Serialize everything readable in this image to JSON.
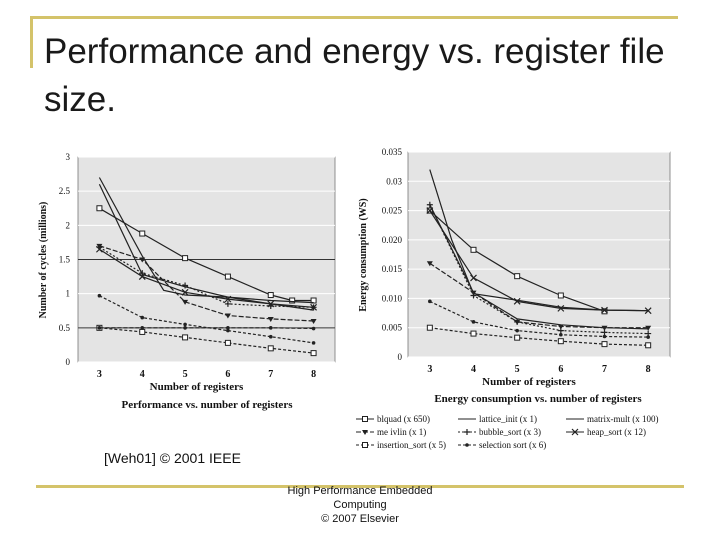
{
  "slide": {
    "title": "Performance and energy vs. register file size.",
    "citation": "[Weh01] © 2001 IEEE",
    "footer": [
      "High Performance Embedded",
      "Computing",
      "© 2007 Elsevier"
    ]
  },
  "chart_data": [
    {
      "type": "line",
      "title": "Performance vs. number of registers",
      "xlabel": "Number of registers",
      "ylabel": "Number of cycles (millions)",
      "x": [
        3,
        4,
        5,
        6,
        7,
        8
      ],
      "xlim": [
        2.5,
        8.5
      ],
      "ylim": [
        0,
        3
      ],
      "yticks": [
        "0",
        "0.5",
        "1",
        "1.5",
        "2",
        "2.5",
        "3"
      ],
      "grid": true,
      "series": [
        {
          "name": "blquad (x 650)",
          "marker": "square",
          "dash": "",
          "x": [
            3,
            4,
            5,
            6,
            7,
            7.5,
            8
          ],
          "values": [
            2.25,
            1.88,
            1.52,
            1.25,
            0.98,
            0.9,
            0.9
          ]
        },
        {
          "name": "lattice_init (x 1)",
          "marker": "none",
          "dash": "",
          "x": [
            3,
            4,
            4.5,
            5,
            6,
            7,
            8
          ],
          "values": [
            2.7,
            1.55,
            1.05,
            0.98,
            0.95,
            0.9,
            0.87
          ]
        },
        {
          "name": "matrix-mult (x 100)",
          "marker": "none",
          "dash": "",
          "x": [
            3,
            4,
            5,
            6,
            7,
            8
          ],
          "values": [
            2.6,
            1.28,
            1.1,
            0.95,
            0.85,
            0.76
          ]
        },
        {
          "name": "me ivlin (x 1)",
          "marker": "triangle",
          "dash": "5,2",
          "x": [
            3,
            4,
            5,
            6,
            7,
            8
          ],
          "values": [
            1.7,
            1.5,
            0.88,
            0.68,
            0.63,
            0.6
          ]
        },
        {
          "name": "bubble_sort (x 3)",
          "marker": "plus",
          "dash": "2,2",
          "x": [
            3,
            4,
            5,
            6,
            7,
            8
          ],
          "values": [
            1.68,
            1.3,
            1.12,
            0.85,
            0.82,
            0.8
          ]
        },
        {
          "name": "heap_sort (x 12)",
          "marker": "x",
          "dash": "",
          "x": [
            3,
            4,
            5,
            6,
            7,
            8
          ],
          "values": [
            1.65,
            1.25,
            1.02,
            0.92,
            0.85,
            0.8
          ]
        },
        {
          "name": "insertion_sort (x 5)",
          "marker": "square",
          "dash": "3,2",
          "x": [
            3,
            4,
            5,
            6,
            7,
            8
          ],
          "values": [
            0.5,
            0.44,
            0.36,
            0.28,
            0.2,
            0.13
          ]
        },
        {
          "name": "selection sort (x 6)",
          "marker": "dot",
          "dash": "3,2",
          "x": [
            3,
            4,
            5,
            6,
            7,
            8
          ],
          "values": [
            0.97,
            0.65,
            0.55,
            0.46,
            0.37,
            0.28
          ]
        },
        {
          "name": "",
          "marker": "dot",
          "dash": "4,2",
          "x": [
            3,
            4,
            5,
            6,
            7,
            8
          ],
          "values": [
            0.5,
            0.5,
            0.5,
            0.5,
            0.5,
            0.49
          ]
        }
      ]
    },
    {
      "type": "line",
      "title": "Energy consumption vs. number of registers",
      "xlabel": "Number of registers",
      "ylabel": "Energy consumption (WS)",
      "x": [
        3,
        4,
        5,
        6,
        7,
        8
      ],
      "xlim": [
        2.5,
        8.5
      ],
      "ylim": [
        0,
        0.035
      ],
      "yticks": [
        "0",
        "0.005",
        "0.010",
        "0.015",
        "0.020",
        "0.025",
        "0.03",
        "0.035"
      ],
      "grid": true,
      "series": [
        {
          "name": "blquad (x 650)",
          "marker": "square",
          "dash": "",
          "x": [
            3,
            4,
            5,
            6,
            7
          ],
          "values": [
            0.025,
            0.0183,
            0.0138,
            0.0105,
            0.0078
          ]
        },
        {
          "name": "lattice_init (x 1)",
          "marker": "none",
          "dash": "",
          "x": [
            3,
            3.5,
            4,
            5,
            6,
            7,
            8
          ],
          "values": [
            0.032,
            0.02,
            0.0108,
            0.0097,
            0.0085,
            0.008,
            0.0079
          ]
        },
        {
          "name": "matrix-mult (x 100)",
          "marker": "none",
          "dash": "",
          "x": [
            3,
            4,
            5,
            6,
            7,
            8
          ],
          "values": [
            0.026,
            0.011,
            0.0065,
            0.0055,
            0.005,
            0.0048
          ]
        },
        {
          "name": "me ivlin (x 1)",
          "marker": "triangle",
          "dash": "5,2",
          "x": [
            3,
            4,
            5,
            6,
            7,
            8
          ],
          "values": [
            0.016,
            0.011,
            0.006,
            0.0052,
            0.005,
            0.005
          ]
        },
        {
          "name": "bubble_sort (x 3)",
          "marker": "plus",
          "dash": "2,2",
          "x": [
            3,
            4,
            5,
            6,
            7,
            8
          ],
          "values": [
            0.026,
            0.0105,
            0.006,
            0.0045,
            0.0042,
            0.004
          ]
        },
        {
          "name": "heap_sort (x 12)",
          "marker": "x",
          "dash": "",
          "x": [
            3,
            4,
            5,
            6,
            7,
            8
          ],
          "values": [
            0.025,
            0.0135,
            0.0095,
            0.0083,
            0.008,
            0.0079
          ]
        },
        {
          "name": "insertion_sort (x 5)",
          "marker": "square",
          "dash": "3,2",
          "x": [
            3,
            4,
            5,
            6,
            7,
            8
          ],
          "values": [
            0.005,
            0.004,
            0.0033,
            0.0027,
            0.0022,
            0.002
          ]
        },
        {
          "name": "selection sort (x 6)",
          "marker": "dot",
          "dash": "3,2",
          "x": [
            3,
            4,
            5,
            6,
            7,
            8
          ],
          "values": [
            0.0095,
            0.006,
            0.0045,
            0.0038,
            0.0035,
            0.0034
          ]
        }
      ]
    }
  ]
}
